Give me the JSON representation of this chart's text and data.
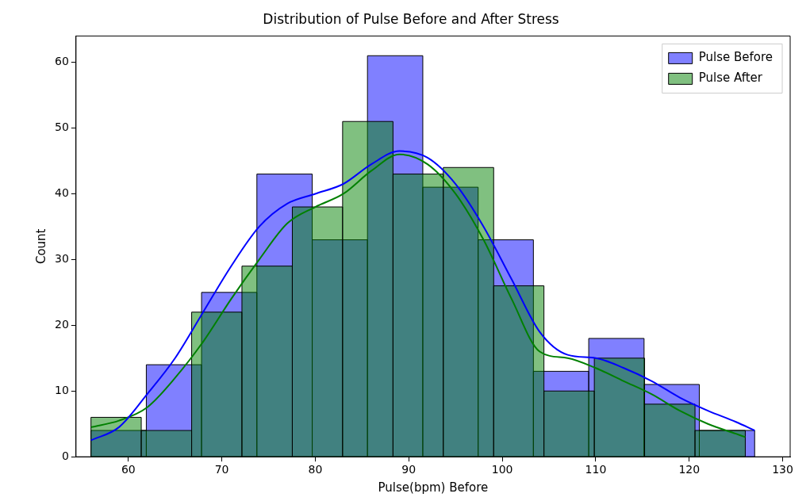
{
  "chart_data": {
    "type": "histogram",
    "title": "Distribution of Pulse Before and After Stress",
    "xlabel": "Pulse(bpm) Before",
    "ylabel": "Count",
    "xlim": [
      54.4,
      130.8
    ],
    "xticks": [
      60,
      70,
      80,
      90,
      100,
      110,
      120,
      130
    ],
    "ylim": [
      0,
      64
    ],
    "yticks": [
      0,
      10,
      20,
      30,
      40,
      50,
      60
    ],
    "grid": false,
    "legend": "top right",
    "series": [
      {
        "name": "Pulse Before",
        "color": "#8080ff",
        "bins": [
          56,
          61.92,
          67.83,
          73.75,
          79.67,
          85.58,
          91.5,
          97.42,
          103.33,
          109.25,
          115.17,
          121.08,
          127
        ],
        "values": [
          4,
          14,
          25,
          43,
          33,
          61,
          41,
          33,
          13,
          18,
          11,
          4
        ]
      },
      {
        "name": "Pulse After",
        "color": "#80c080",
        "bins": [
          56,
          61.38,
          66.77,
          72.15,
          77.54,
          82.92,
          88.31,
          93.69,
          99.08,
          104.46,
          109.85,
          115.23,
          120.62,
          126
        ],
        "values": [
          6,
          4,
          22,
          29,
          38,
          51,
          43,
          44,
          26,
          10,
          15,
          8,
          4
        ]
      },
      {
        "type": "line",
        "color": "#0000ff",
        "x": [
          56,
          59,
          62,
          65,
          68,
          71,
          74,
          77,
          80,
          83,
          86,
          89,
          92,
          95,
          98,
          101,
          104,
          107,
          110,
          113,
          116,
          119,
          122,
          125,
          127
        ],
        "values": [
          2.5,
          4.5,
          9.5,
          15,
          22,
          29,
          35,
          38.5,
          40,
          41.5,
          44.5,
          46.5,
          45.5,
          41.5,
          35,
          27,
          19,
          15.5,
          15,
          13.5,
          11.5,
          9,
          7,
          5.3,
          4
        ]
      },
      {
        "type": "line",
        "color": "#008000",
        "x": [
          56,
          59,
          62,
          65,
          68,
          71,
          74,
          77,
          80,
          83,
          86,
          89,
          92,
          95,
          98,
          101,
          104,
          107,
          110,
          113,
          116,
          119,
          122,
          125,
          126
        ],
        "values": [
          4.5,
          5.5,
          7.5,
          12,
          17.5,
          24,
          30,
          35.5,
          38,
          40,
          43.5,
          46,
          44.5,
          40,
          33,
          24,
          16,
          15,
          13.5,
          11.5,
          9.5,
          7,
          5,
          3.5,
          3
        ]
      }
    ]
  }
}
